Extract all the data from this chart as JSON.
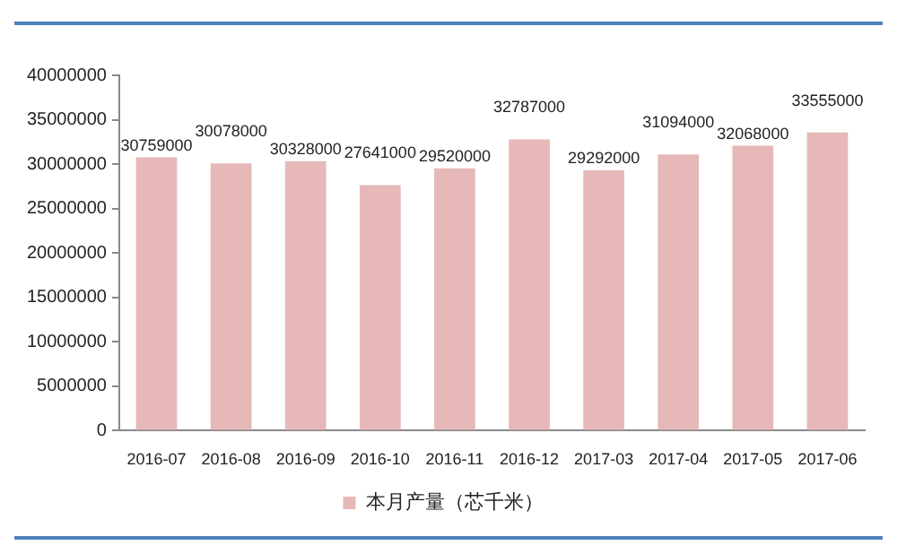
{
  "chart_data": {
    "type": "bar",
    "categories": [
      "2016-07",
      "2016-08",
      "2016-09",
      "2016-10",
      "2016-11",
      "2016-12",
      "2017-03",
      "2017-04",
      "2017-05",
      "2017-06"
    ],
    "series": [
      {
        "name": "本月产量（芯千米）",
        "color": "#e6b8b7",
        "values": [
          30759000,
          30078000,
          30328000,
          27641000,
          29520000,
          32787000,
          29292000,
          31094000,
          32068000,
          33555000
        ]
      }
    ],
    "ylim": [
      0,
      40000000
    ],
    "yticks": [
      0,
      5000000,
      10000000,
      15000000,
      20000000,
      25000000,
      30000000,
      35000000,
      40000000
    ],
    "grid": false,
    "legend": "bottom",
    "data_labels": true
  }
}
